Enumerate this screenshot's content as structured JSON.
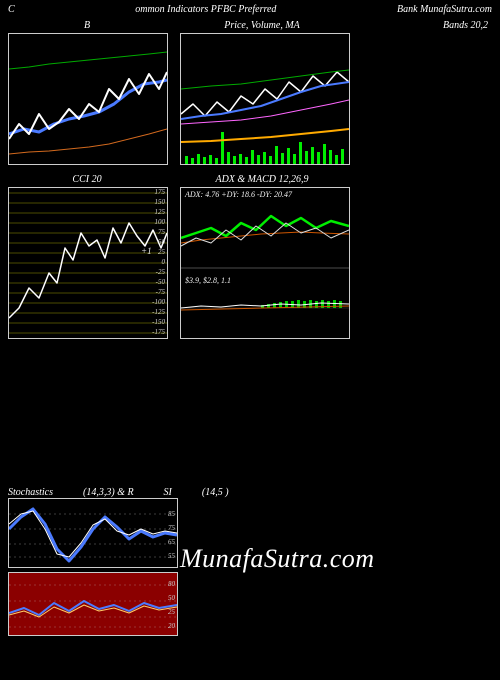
{
  "header": {
    "left": "C",
    "center": "ommon Indicators PFBC Preferred",
    "right": "Bank MunafaSutra.com"
  },
  "row1": {
    "chartA": {
      "title": "B",
      "lines": [
        {
          "color": "#00aa00",
          "width": 1,
          "points": [
            0,
            35,
            20,
            33,
            40,
            30,
            60,
            28,
            80,
            26,
            100,
            24,
            120,
            22,
            140,
            20,
            158,
            18
          ]
        },
        {
          "color": "#4a7aff",
          "width": 3,
          "points": [
            0,
            100,
            15,
            95,
            30,
            98,
            45,
            90,
            60,
            85,
            75,
            82,
            90,
            78,
            105,
            70,
            120,
            58,
            135,
            50,
            150,
            48,
            158,
            46
          ]
        },
        {
          "color": "#ffffff",
          "width": 2,
          "points": [
            0,
            105,
            10,
            90,
            20,
            100,
            30,
            80,
            40,
            95,
            50,
            88,
            60,
            75,
            70,
            85,
            80,
            70,
            90,
            78,
            100,
            55,
            110,
            65,
            120,
            45,
            130,
            60,
            140,
            40,
            150,
            55,
            158,
            38
          ]
        },
        {
          "color": "#d2691e",
          "width": 1,
          "points": [
            0,
            120,
            20,
            118,
            40,
            117,
            60,
            115,
            80,
            113,
            100,
            110,
            120,
            105,
            140,
            100,
            158,
            95
          ]
        }
      ]
    },
    "chartB": {
      "title": "Price, Volume, MA",
      "lines": [
        {
          "color": "#ffffff",
          "width": 1.5,
          "points": [
            0,
            80,
            12,
            70,
            24,
            82,
            36,
            68,
            48,
            78,
            60,
            62,
            72,
            70,
            84,
            55,
            96,
            65,
            108,
            48,
            120,
            58,
            132,
            42,
            144,
            52,
            156,
            38,
            168,
            48
          ]
        },
        {
          "color": "#4a7aff",
          "width": 2,
          "points": [
            0,
            85,
            20,
            82,
            40,
            80,
            60,
            76,
            80,
            72,
            100,
            65,
            120,
            58,
            140,
            52,
            168,
            48
          ]
        },
        {
          "color": "#00aa00",
          "width": 1,
          "points": [
            0,
            55,
            30,
            52,
            60,
            50,
            90,
            46,
            120,
            42,
            150,
            38,
            168,
            36
          ]
        },
        {
          "color": "#ff66ff",
          "width": 1,
          "points": [
            0,
            90,
            30,
            88,
            60,
            86,
            90,
            82,
            120,
            76,
            150,
            70,
            168,
            66
          ]
        },
        {
          "color": "#ffaa00",
          "width": 2,
          "points": [
            0,
            108,
            30,
            107,
            60,
            105,
            90,
            103,
            120,
            100,
            150,
            97,
            168,
            95
          ]
        }
      ],
      "volume_bars": {
        "color": "#00ee00",
        "baseline": 130,
        "widths": 3,
        "positions": [
          [
            4,
            8
          ],
          [
            10,
            6
          ],
          [
            16,
            10
          ],
          [
            22,
            7
          ],
          [
            28,
            9
          ],
          [
            34,
            6
          ],
          [
            40,
            32
          ],
          [
            46,
            12
          ],
          [
            52,
            8
          ],
          [
            58,
            10
          ],
          [
            64,
            7
          ],
          [
            70,
            14
          ],
          [
            76,
            9
          ],
          [
            82,
            12
          ],
          [
            88,
            8
          ],
          [
            94,
            18
          ],
          [
            100,
            11
          ],
          [
            106,
            16
          ],
          [
            112,
            10
          ],
          [
            118,
            22
          ],
          [
            124,
            13
          ],
          [
            130,
            17
          ],
          [
            136,
            12
          ],
          [
            142,
            20
          ],
          [
            148,
            14
          ],
          [
            154,
            9
          ],
          [
            160,
            15
          ]
        ]
      }
    },
    "chartC": {
      "title": "Bands 20,2",
      "empty": true
    }
  },
  "row2": {
    "chartCCI": {
      "title": "CCI 20",
      "grid_color": "#666600",
      "scale_labels": [
        "175",
        "150",
        "125",
        "100",
        "75",
        "50",
        "25",
        "0",
        "-25",
        "-50",
        "-75",
        "-100",
        "-125",
        "-150",
        "-175"
      ],
      "line": {
        "color": "#ffffff",
        "width": 1.5,
        "points": [
          0,
          130,
          10,
          120,
          20,
          100,
          30,
          110,
          40,
          85,
          48,
          95,
          56,
          60,
          64,
          72,
          72,
          45,
          80,
          58,
          88,
          52,
          96,
          70,
          104,
          40,
          112,
          55,
          120,
          35,
          128,
          48,
          136,
          58,
          144,
          42,
          152,
          60,
          158,
          45
        ]
      },
      "mark": "+1"
    },
    "chartADX": {
      "title": "ADX  & MACD 12,26,9",
      "top_text": "ADX: 4.76   +DY: 18.6   -DY: 20.47",
      "bot_text": "$3.9,  $2.8,  1.1",
      "upper_lines": [
        {
          "color": "#00ee00",
          "width": 2.5,
          "points": [
            0,
            50,
            15,
            45,
            30,
            40,
            45,
            48,
            60,
            35,
            75,
            42,
            90,
            28,
            105,
            38,
            120,
            30,
            135,
            40,
            150,
            33,
            168,
            38
          ]
        },
        {
          "color": "#cc5500",
          "width": 1,
          "points": [
            0,
            55,
            20,
            52,
            40,
            50,
            60,
            48,
            80,
            46,
            100,
            45,
            120,
            44,
            140,
            45,
            168,
            46
          ]
        },
        {
          "color": "#dddddd",
          "width": 1,
          "points": [
            0,
            58,
            15,
            50,
            30,
            55,
            45,
            42,
            60,
            52,
            75,
            38,
            90,
            48,
            105,
            35,
            120,
            45,
            135,
            40,
            150,
            50,
            168,
            42
          ]
        }
      ],
      "lower_lines": [
        {
          "color": "#ffffff",
          "width": 1,
          "points": [
            0,
            120,
            20,
            118,
            40,
            119,
            60,
            117,
            80,
            118,
            100,
            116,
            120,
            117,
            140,
            115,
            168,
            116
          ]
        },
        {
          "color": "#cc5500",
          "width": 1,
          "points": [
            0,
            122,
            168,
            118
          ]
        }
      ],
      "lower_bars": {
        "color": "#00cc00",
        "baseline": 120,
        "positions": [
          [
            80,
            3
          ],
          [
            86,
            4
          ],
          [
            92,
            5
          ],
          [
            98,
            6
          ],
          [
            104,
            7
          ],
          [
            110,
            7
          ],
          [
            116,
            8
          ],
          [
            122,
            7
          ],
          [
            128,
            8
          ],
          [
            134,
            7
          ],
          [
            140,
            8
          ],
          [
            146,
            7
          ],
          [
            152,
            8
          ],
          [
            158,
            7
          ]
        ]
      }
    }
  },
  "row3": {
    "title_line": {
      "left": "Stochastics",
      "mid": "(14,3,3) & R",
      "mid2": "SI",
      "right": "(14,5                                 )"
    },
    "chartStoch": {
      "scale_right": [
        "85",
        "75",
        "65",
        "55"
      ],
      "grid_color": "#777777",
      "bg": "#000000",
      "lines": [
        {
          "color": "#4a7aff",
          "width": 3,
          "points": [
            0,
            30,
            12,
            18,
            24,
            10,
            36,
            25,
            48,
            50,
            60,
            62,
            72,
            48,
            84,
            30,
            96,
            18,
            108,
            28,
            120,
            40,
            132,
            32,
            144,
            38,
            156,
            34,
            168,
            36
          ]
        },
        {
          "color": "#ffffff",
          "width": 1,
          "points": [
            0,
            25,
            12,
            15,
            24,
            12,
            36,
            30,
            48,
            55,
            60,
            58,
            72,
            44,
            84,
            26,
            96,
            20,
            108,
            32,
            120,
            36,
            132,
            30,
            144,
            35,
            156,
            32,
            168,
            34
          ]
        }
      ]
    },
    "chartRSI": {
      "bg": "#8b0000",
      "scale_right": [
        "80",
        "50",
        "25",
        "20"
      ],
      "grid_color": "#aa6666",
      "lines": [
        {
          "color": "#4a7aff",
          "width": 2,
          "points": [
            0,
            40,
            15,
            35,
            30,
            42,
            45,
            30,
            60,
            38,
            75,
            28,
            90,
            36,
            105,
            32,
            120,
            38,
            135,
            30,
            150,
            35,
            168,
            32
          ]
        },
        {
          "color": "#ffcc66",
          "width": 1,
          "points": [
            0,
            42,
            15,
            38,
            30,
            44,
            45,
            34,
            60,
            40,
            75,
            32,
            90,
            38,
            105,
            35,
            120,
            40,
            135,
            33,
            150,
            37,
            168,
            34
          ]
        }
      ]
    }
  },
  "watermark": "MunafaSutra.com"
}
